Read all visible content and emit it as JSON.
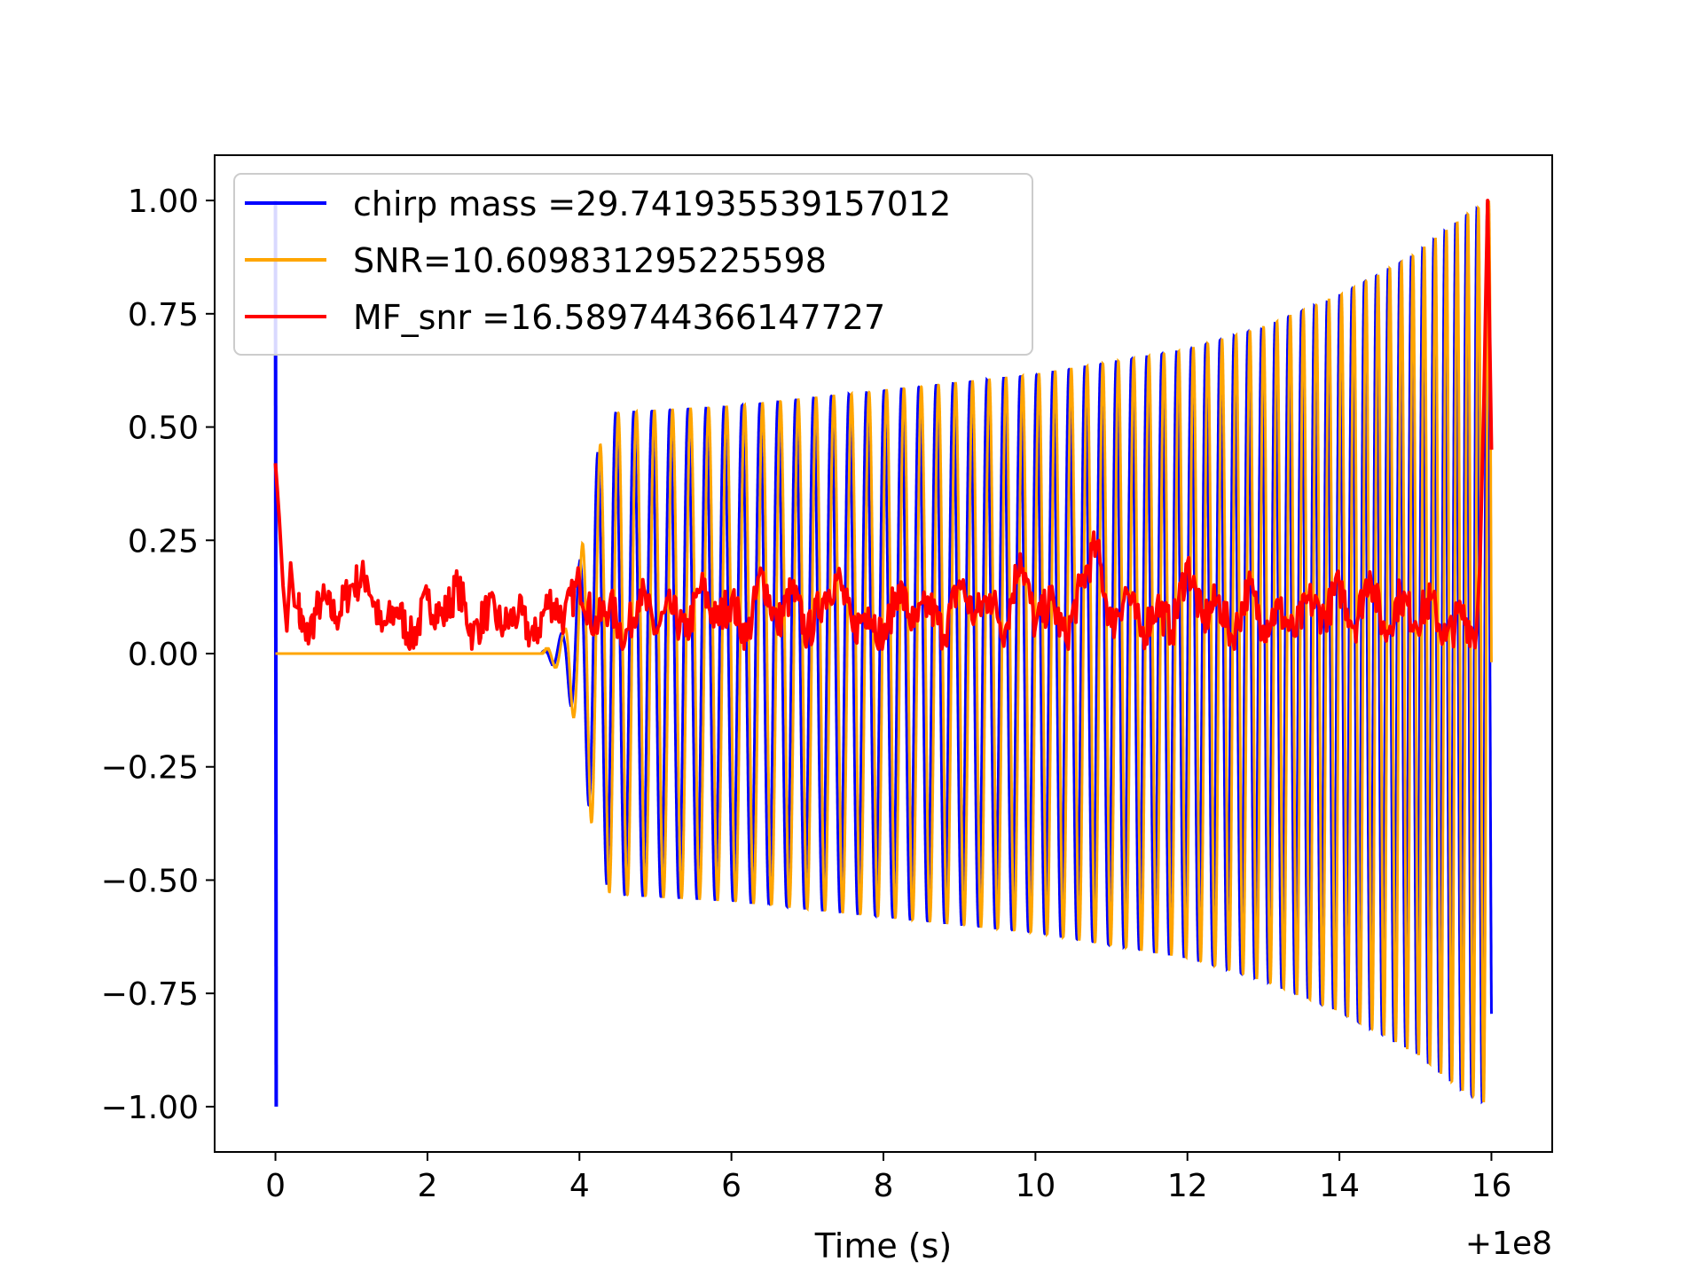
{
  "chart_data": {
    "type": "line",
    "title": "",
    "xlabel": "Time (s)",
    "ylabel": "",
    "x_offset_label": "+1e8",
    "xlim": [
      -0.8,
      16.8
    ],
    "ylim": [
      -1.1,
      1.1
    ],
    "x_ticks": [
      0,
      2,
      4,
      6,
      8,
      10,
      12,
      14,
      16
    ],
    "y_ticks": [
      1.0,
      0.75,
      0.5,
      0.25,
      0.0,
      -0.25,
      -0.5,
      -0.75,
      -1.0
    ],
    "x_tick_labels": [
      "0",
      "2",
      "4",
      "6",
      "8",
      "10",
      "12",
      "14",
      "16"
    ],
    "y_tick_labels": [
      "1.00",
      "0.75",
      "0.50",
      "0.25",
      "0.00",
      "−0.25",
      "−0.50",
      "−0.75",
      "−1.00"
    ],
    "grid": false,
    "legend_position": "top-left",
    "series": [
      {
        "name": "chirp mass =29.741935539157012",
        "color": "#0000ff",
        "style": "chirp oscillation with envelope",
        "spike": {
          "x": 0.0,
          "y_max": 1.0,
          "y_min": -1.0
        },
        "onset_x": 3.5,
        "plateau": {
          "x": 4.4,
          "amplitude": 0.53
        },
        "envelope": [
          [
            3.5,
            0.0
          ],
          [
            3.8,
            0.05
          ],
          [
            4.0,
            0.2
          ],
          [
            4.2,
            0.42
          ],
          [
            4.4,
            0.53
          ],
          [
            6.0,
            0.545
          ],
          [
            8.0,
            0.58
          ],
          [
            10.0,
            0.615
          ],
          [
            12.0,
            0.67
          ],
          [
            13.0,
            0.72
          ],
          [
            14.0,
            0.79
          ],
          [
            15.0,
            0.88
          ],
          [
            15.6,
            0.96
          ],
          [
            16.0,
            1.0
          ]
        ]
      },
      {
        "name": "SNR=10.609831295225598",
        "color": "#ffa500",
        "style": "chirp oscillation with envelope",
        "onset_x": 3.5,
        "envelope": [
          [
            3.5,
            0.0
          ],
          [
            3.8,
            0.05
          ],
          [
            4.0,
            0.2
          ],
          [
            4.2,
            0.42
          ],
          [
            4.4,
            0.53
          ],
          [
            6.0,
            0.545
          ],
          [
            8.0,
            0.58
          ],
          [
            10.0,
            0.615
          ],
          [
            12.0,
            0.67
          ],
          [
            13.0,
            0.72
          ],
          [
            14.0,
            0.79
          ],
          [
            15.0,
            0.88
          ],
          [
            15.6,
            0.96
          ],
          [
            16.0,
            1.0
          ]
        ]
      },
      {
        "name": "MF_snr =16.589744366147727",
        "color": "#ff0000",
        "style": "noisy positive trace",
        "points": [
          [
            0.0,
            0.42
          ],
          [
            0.05,
            0.3
          ],
          [
            0.1,
            0.15
          ],
          [
            0.15,
            0.05
          ],
          [
            0.2,
            0.2
          ],
          [
            0.3,
            0.1
          ],
          [
            0.4,
            0.03
          ],
          [
            0.6,
            0.12
          ],
          [
            0.8,
            0.08
          ],
          [
            1.0,
            0.15
          ],
          [
            1.2,
            0.17
          ],
          [
            1.4,
            0.05
          ],
          [
            1.6,
            0.1
          ],
          [
            1.8,
            0.03
          ],
          [
            2.0,
            0.12
          ],
          [
            2.2,
            0.08
          ],
          [
            2.4,
            0.15
          ],
          [
            2.6,
            0.04
          ],
          [
            2.8,
            0.1
          ],
          [
            3.0,
            0.06
          ],
          [
            3.2,
            0.09
          ],
          [
            3.4,
            0.03
          ],
          [
            3.6,
            0.12
          ],
          [
            3.8,
            0.08
          ],
          [
            4.0,
            0.16
          ],
          [
            4.2,
            0.06
          ],
          [
            4.4,
            0.11
          ],
          [
            4.6,
            0.03
          ],
          [
            4.8,
            0.14
          ],
          [
            5.0,
            0.05
          ],
          [
            5.2,
            0.1
          ],
          [
            5.4,
            0.04
          ],
          [
            5.6,
            0.15
          ],
          [
            5.8,
            0.07
          ],
          [
            6.0,
            0.12
          ],
          [
            6.2,
            0.03
          ],
          [
            6.4,
            0.18
          ],
          [
            6.6,
            0.06
          ],
          [
            6.8,
            0.14
          ],
          [
            7.0,
            0.04
          ],
          [
            7.2,
            0.12
          ],
          [
            7.4,
            0.17
          ],
          [
            7.6,
            0.05
          ],
          [
            7.8,
            0.1
          ],
          [
            8.0,
            0.03
          ],
          [
            8.2,
            0.15
          ],
          [
            8.4,
            0.06
          ],
          [
            8.6,
            0.11
          ],
          [
            8.8,
            0.04
          ],
          [
            9.0,
            0.16
          ],
          [
            9.2,
            0.08
          ],
          [
            9.4,
            0.13
          ],
          [
            9.6,
            0.05
          ],
          [
            9.8,
            0.22
          ],
          [
            10.0,
            0.06
          ],
          [
            10.2,
            0.12
          ],
          [
            10.4,
            0.03
          ],
          [
            10.6,
            0.15
          ],
          [
            10.8,
            0.24
          ],
          [
            11.0,
            0.06
          ],
          [
            11.2,
            0.14
          ],
          [
            11.4,
            0.04
          ],
          [
            11.6,
            0.11
          ],
          [
            11.8,
            0.05
          ],
          [
            12.0,
            0.2
          ],
          [
            12.2,
            0.07
          ],
          [
            12.4,
            0.12
          ],
          [
            12.6,
            0.03
          ],
          [
            12.8,
            0.15
          ],
          [
            13.0,
            0.06
          ],
          [
            13.2,
            0.1
          ],
          [
            13.4,
            0.04
          ],
          [
            13.6,
            0.12
          ],
          [
            13.8,
            0.08
          ],
          [
            14.0,
            0.15
          ],
          [
            14.2,
            0.06
          ],
          [
            14.4,
            0.18
          ],
          [
            14.6,
            0.04
          ],
          [
            14.8,
            0.13
          ],
          [
            15.0,
            0.07
          ],
          [
            15.2,
            0.12
          ],
          [
            15.4,
            0.03
          ],
          [
            15.6,
            0.09
          ],
          [
            15.8,
            0.04
          ],
          [
            15.85,
            0.2
          ],
          [
            15.9,
            0.55
          ],
          [
            15.95,
            1.0
          ],
          [
            16.0,
            0.45
          ]
        ]
      }
    ]
  }
}
